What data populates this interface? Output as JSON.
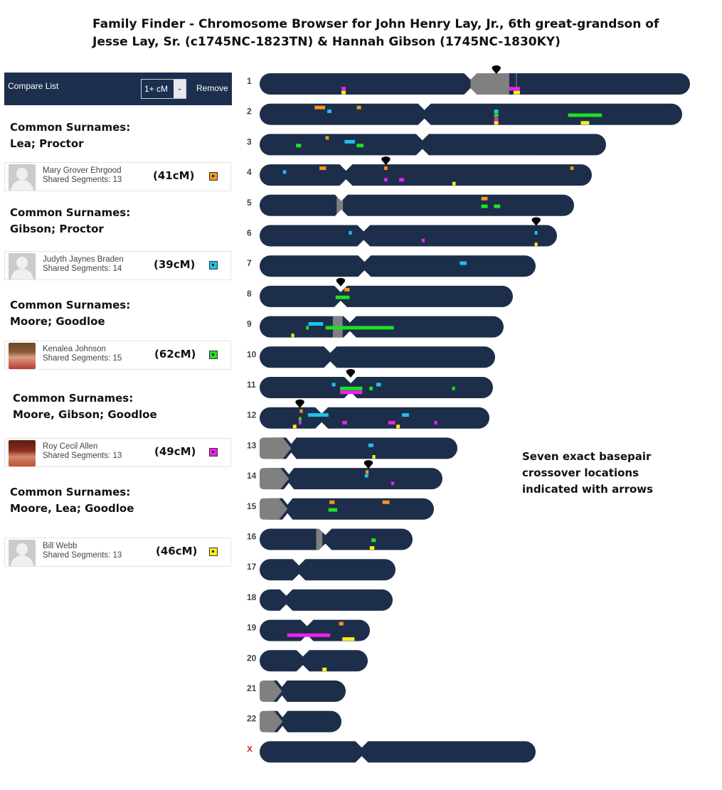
{
  "title": {
    "line1": "Family Finder - Chromosome Browser for John Henry Lay, Jr., 6th great-grandson of",
    "line2": "Jesse Lay, Sr. (c1745NC-1823TN) & Hannah Gibson (1745NC-1830KY)"
  },
  "compare_panel": {
    "label": "Compare List",
    "threshold_value": "1+ cM",
    "threshold_icon": "chevron-down-icon",
    "remove_label": "Remove"
  },
  "groups": [
    {
      "surnames_line1": "Common Surnames:",
      "surnames_line2": "Lea; Proctor",
      "match": {
        "name": "Mary Grover Ehrgood",
        "segments": "Shared Segments: 13",
        "cm": "(41cM)",
        "color": "#f7941d",
        "avatar": "blank-avatar-icon"
      }
    },
    {
      "surnames_line1": "Common Surnames:",
      "surnames_line2": "Gibson; Proctor",
      "match": {
        "name": "Judyth Jaynes Braden",
        "segments": "Shared Segments: 14",
        "cm": "(39cM)",
        "color": "#1ec1f0",
        "avatar": "blank-avatar-icon"
      }
    },
    {
      "surnames_line1": "Common Surnames:",
      "surnames_line2": "Moore; Goodloe",
      "match": {
        "name": "Kenalea Johnson",
        "segments": "Shared Segments: 15",
        "cm": "(62cM)",
        "color": "#21e021",
        "avatar": "photo"
      }
    },
    {
      "surnames_line1": "Common Surnames:",
      "surnames_line2": "Moore, Gibson; Goodloe",
      "match": {
        "name": "Roy Cecil Allen",
        "segments": "Shared Segments: 13",
        "cm": "(49cM)",
        "color": "#f01ef0",
        "avatar": "photo"
      }
    },
    {
      "surnames_line1": "Common Surnames:",
      "surnames_line2": "Moore, Lea; Goodloe",
      "match": {
        "name": "Bill Webb",
        "segments": "Shared Segments: 13",
        "cm": "(46cM)",
        "color": "#ffef1a",
        "avatar": "blank-avatar-icon"
      }
    }
  ],
  "note": {
    "line1": "Seven exact basepair",
    "line2": "crossover locations",
    "line3": "indicated with arrows"
  },
  "colors": {
    "chromosome": "#1c2e4a",
    "centromere_gray": "#808080",
    "arrow": "#000000",
    "chromosome_label": "#444444",
    "x_label": "#c0392b",
    "panel_header": "#1d2f4f"
  },
  "chromosomes": [
    {
      "label": "1",
      "length": 605,
      "centromere": 0.49,
      "gray": [
        0.49,
        0.58
      ],
      "cross": 0.595
    },
    {
      "label": "2",
      "length": 594,
      "centromere": 0.39
    },
    {
      "label": "3",
      "length": 487,
      "centromere": 0.47
    },
    {
      "label": "4",
      "length": 467,
      "centromere": 0.26
    },
    {
      "label": "5",
      "length": 442,
      "centromere": 0.26,
      "gray": [
        0.245,
        0.265
      ]
    },
    {
      "label": "6",
      "length": 418,
      "centromere": 0.35
    },
    {
      "label": "7",
      "length": 388,
      "centromere": 0.38
    },
    {
      "label": "8",
      "length": 356,
      "centromere": 0.32
    },
    {
      "label": "9",
      "length": 343,
      "centromere": 0.37,
      "gray": [
        0.3,
        0.34
      ]
    },
    {
      "label": "10",
      "length": 331,
      "centromere": 0.3
    },
    {
      "label": "11",
      "length": 328,
      "centromere": 0.39
    },
    {
      "label": "12",
      "length": 323,
      "centromere": 0.27
    },
    {
      "label": "13",
      "length": 278,
      "centromere": 0.16,
      "acro": true
    },
    {
      "label": "14",
      "length": 257,
      "centromere": 0.16,
      "acro": true
    },
    {
      "label": "15",
      "length": 245,
      "centromere": 0.16,
      "acro": true
    },
    {
      "label": "16",
      "length": 215,
      "centromere": 0.43,
      "gray": [
        0.37,
        0.41
      ]
    },
    {
      "label": "17",
      "length": 191,
      "centromere": 0.29
    },
    {
      "label": "18",
      "length": 187,
      "centromere": 0.2
    },
    {
      "label": "19",
      "length": 155,
      "centromere": 0.43
    },
    {
      "label": "20",
      "length": 152,
      "centromere": 0.4
    },
    {
      "label": "21",
      "length": 121,
      "centromere": 0.26,
      "acro": true
    },
    {
      "label": "22",
      "length": 115,
      "centromere": 0.28,
      "acro": true
    },
    {
      "label": "X",
      "length": 388,
      "centromere": 0.37
    }
  ],
  "segments": [
    {
      "chr": "1",
      "m": 4,
      "start": 0.19,
      "end": 0.2
    },
    {
      "chr": "1",
      "m": 3,
      "start": 0.19,
      "end": 0.2
    },
    {
      "chr": "1",
      "m": 3,
      "start": 0.58,
      "end": 0.605
    },
    {
      "chr": "1",
      "m": 4,
      "start": 0.59,
      "end": 0.605
    },
    {
      "chr": "2",
      "m": 0,
      "start": 0.13,
      "end": 0.155
    },
    {
      "chr": "2",
      "m": 0,
      "start": 0.23,
      "end": 0.24
    },
    {
      "chr": "2",
      "m": 1,
      "start": 0.16,
      "end": 0.17
    },
    {
      "chr": "2",
      "m": 1,
      "start": 0.555,
      "end": 0.565
    },
    {
      "chr": "2",
      "m": 2,
      "start": 0.555,
      "end": 0.565
    },
    {
      "chr": "2",
      "m": 2,
      "start": 0.73,
      "end": 0.81
    },
    {
      "chr": "2",
      "m": 3,
      "start": 0.555,
      "end": 0.565
    },
    {
      "chr": "2",
      "m": 4,
      "start": 0.555,
      "end": 0.565
    },
    {
      "chr": "2",
      "m": 4,
      "start": 0.76,
      "end": 0.78
    },
    {
      "chr": "3",
      "m": 0,
      "start": 0.19,
      "end": 0.2
    },
    {
      "chr": "3",
      "m": 1,
      "start": 0.245,
      "end": 0.275
    },
    {
      "chr": "3",
      "m": 2,
      "start": 0.105,
      "end": 0.12
    },
    {
      "chr": "3",
      "m": 2,
      "start": 0.28,
      "end": 0.3
    },
    {
      "chr": "4",
      "m": 0,
      "start": 0.18,
      "end": 0.2
    },
    {
      "chr": "4",
      "m": 0,
      "start": 0.375,
      "end": 0.385
    },
    {
      "chr": "4",
      "m": 0,
      "start": 0.935,
      "end": 0.945
    },
    {
      "chr": "4",
      "m": 1,
      "start": 0.07,
      "end": 0.08
    },
    {
      "chr": "4",
      "m": 3,
      "start": 0.375,
      "end": 0.385
    },
    {
      "chr": "4",
      "m": 3,
      "start": 0.42,
      "end": 0.435
    },
    {
      "chr": "4",
      "m": 4,
      "start": 0.58,
      "end": 0.59
    },
    {
      "chr": "5",
      "m": 0,
      "start": 0.705,
      "end": 0.725
    },
    {
      "chr": "5",
      "m": 2,
      "start": 0.705,
      "end": 0.725
    },
    {
      "chr": "5",
      "m": 2,
      "start": 0.745,
      "end": 0.765
    },
    {
      "chr": "6",
      "m": 1,
      "start": 0.3,
      "end": 0.31
    },
    {
      "chr": "6",
      "m": 1,
      "start": 0.925,
      "end": 0.93
    },
    {
      "chr": "6",
      "m": 3,
      "start": 0.545,
      "end": 0.555
    },
    {
      "chr": "6",
      "m": 4,
      "start": 0.925,
      "end": 0.93
    },
    {
      "chr": "7",
      "m": 1,
      "start": 0.725,
      "end": 0.75
    },
    {
      "chr": "8",
      "m": 0,
      "start": 0.335,
      "end": 0.355
    },
    {
      "chr": "8",
      "m": 2,
      "start": 0.3,
      "end": 0.355
    },
    {
      "chr": "9",
      "m": 1,
      "start": 0.2,
      "end": 0.26
    },
    {
      "chr": "9",
      "m": 2,
      "start": 0.19,
      "end": 0.2
    },
    {
      "chr": "9",
      "m": 2,
      "start": 0.27,
      "end": 0.55
    },
    {
      "chr": "9",
      "m": 4,
      "start": 0.13,
      "end": 0.14
    },
    {
      "chr": "11",
      "m": 1,
      "start": 0.31,
      "end": 0.325
    },
    {
      "chr": "11",
      "m": 1,
      "start": 0.5,
      "end": 0.52
    },
    {
      "chr": "11",
      "m": 2,
      "start": 0.345,
      "end": 0.44
    },
    {
      "chr": "11",
      "m": 2,
      "start": 0.47,
      "end": 0.485
    },
    {
      "chr": "11",
      "m": 2,
      "start": 0.825,
      "end": 0.83
    },
    {
      "chr": "11",
      "m": 3,
      "start": 0.345,
      "end": 0.44
    },
    {
      "chr": "12",
      "m": 0,
      "start": 0.175,
      "end": 0.18
    },
    {
      "chr": "12",
      "m": 1,
      "start": 0.21,
      "end": 0.3
    },
    {
      "chr": "12",
      "m": 1,
      "start": 0.62,
      "end": 0.65
    },
    {
      "chr": "12",
      "m": 2,
      "start": 0.17,
      "end": 0.175
    },
    {
      "chr": "12",
      "m": 3,
      "start": 0.17,
      "end": 0.175
    },
    {
      "chr": "12",
      "m": 3,
      "start": 0.36,
      "end": 0.38
    },
    {
      "chr": "12",
      "m": 3,
      "start": 0.56,
      "end": 0.59
    },
    {
      "chr": "12",
      "m": 3,
      "start": 0.76,
      "end": 0.765
    },
    {
      "chr": "12",
      "m": 4,
      "start": 0.145,
      "end": 0.16
    },
    {
      "chr": "12",
      "m": 4,
      "start": 0.595,
      "end": 0.61
    },
    {
      "chr": "13",
      "m": 1,
      "start": 0.55,
      "end": 0.575
    },
    {
      "chr": "13",
      "m": 4,
      "start": 0.57,
      "end": 0.585
    },
    {
      "chr": "14",
      "m": 0,
      "start": 0.58,
      "end": 0.595
    },
    {
      "chr": "14",
      "m": 1,
      "start": 0.575,
      "end": 0.595
    },
    {
      "chr": "14",
      "m": 3,
      "start": 0.72,
      "end": 0.73
    },
    {
      "chr": "15",
      "m": 0,
      "start": 0.4,
      "end": 0.43
    },
    {
      "chr": "15",
      "m": 0,
      "start": 0.705,
      "end": 0.745
    },
    {
      "chr": "15",
      "m": 2,
      "start": 0.395,
      "end": 0.445
    },
    {
      "chr": "16",
      "m": 2,
      "start": 0.73,
      "end": 0.76
    },
    {
      "chr": "16",
      "m": 4,
      "start": 0.72,
      "end": 0.75
    },
    {
      "chr": "19",
      "m": 0,
      "start": 0.72,
      "end": 0.76
    },
    {
      "chr": "19",
      "m": 3,
      "start": 0.25,
      "end": 0.64
    },
    {
      "chr": "19",
      "m": 4,
      "start": 0.75,
      "end": 0.86
    },
    {
      "chr": "20",
      "m": 4,
      "start": 0.58,
      "end": 0.62
    }
  ],
  "crossover_arrows": [
    {
      "chr": "1",
      "pos": 0.55
    },
    {
      "chr": "4",
      "pos": 0.38
    },
    {
      "chr": "6",
      "pos": 0.93
    },
    {
      "chr": "8",
      "pos": 0.32
    },
    {
      "chr": "11",
      "pos": 0.39
    },
    {
      "chr": "12",
      "pos": 0.175
    },
    {
      "chr": "14",
      "pos": 0.595
    }
  ]
}
